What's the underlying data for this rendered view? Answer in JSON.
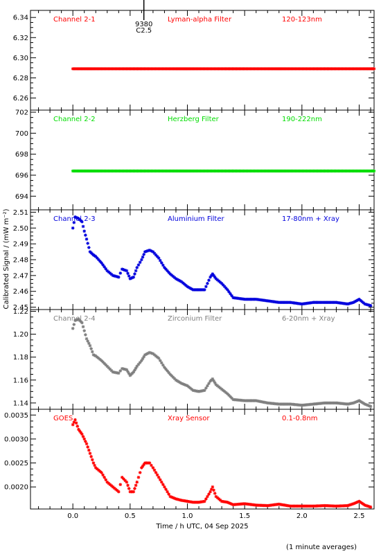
{
  "chart_data": {
    "type": "scatter",
    "xlabel": "Time / h UTC, 04 Sep 2025",
    "ylabel": "Calibrated Signal / (mW m⁻²)",
    "note": "(1 minute averages)",
    "xlim": [
      -0.37,
      2.63
    ],
    "xticks": [
      0.0,
      0.5,
      1.0,
      1.5,
      2.0,
      2.5
    ],
    "xtick_labels": [
      "0.0",
      "0.5",
      "1.0",
      "1.5",
      "2.0",
      "2.5"
    ],
    "marker": "star",
    "panels": [
      {
        "channel": "Channel 2-1",
        "filter": "Lyman-alpha Filter",
        "band": "120-123nm",
        "color": "#ff0000",
        "ylim": [
          6.248,
          6.347
        ],
        "yticks": [
          6.26,
          6.28,
          6.3,
          6.32,
          6.34
        ],
        "ytick_labels": [
          "6.26",
          "6.28",
          "6.30",
          "6.32",
          "6.34"
        ],
        "annotation": {
          "x": 0.62,
          "lines": [
            "9380",
            "C2.5"
          ]
        },
        "x": [
          0.0,
          2.63
        ],
        "y": [
          6.289,
          6.289
        ]
      },
      {
        "channel": "Channel 2-2",
        "filter": "Herzberg Filter",
        "band": "190-222nm",
        "color": "#00dd00",
        "ylim": [
          692.7,
          702.2
        ],
        "yticks": [
          694,
          696,
          698,
          700,
          702
        ],
        "ytick_labels": [
          "694",
          "696",
          "698",
          "700",
          "702"
        ],
        "x": [
          0.0,
          2.63
        ],
        "y": [
          696.4,
          696.4
        ]
      },
      {
        "channel": "Channel 2-3",
        "filter": "Aluminium Filter",
        "band": "17-80nm + Xray",
        "color": "#0000dd",
        "ylim": [
          2.4485,
          2.5115
        ],
        "yticks": [
          2.45,
          2.46,
          2.47,
          2.48,
          2.49,
          2.5,
          2.51
        ],
        "ytick_labels": [
          "2.45",
          "2.46",
          "2.47",
          "2.48",
          "2.49",
          "2.50",
          "2.51"
        ],
        "x": [
          0.0,
          0.02,
          0.05,
          0.08,
          0.1,
          0.12,
          0.15,
          0.18,
          0.2,
          0.25,
          0.3,
          0.35,
          0.4,
          0.43,
          0.47,
          0.5,
          0.53,
          0.56,
          0.6,
          0.63,
          0.67,
          0.7,
          0.75,
          0.8,
          0.85,
          0.9,
          0.95,
          1.0,
          1.05,
          1.1,
          1.15,
          1.2,
          1.22,
          1.25,
          1.3,
          1.35,
          1.4,
          1.5,
          1.6,
          1.7,
          1.8,
          1.9,
          2.0,
          2.1,
          2.2,
          2.3,
          2.4,
          2.45,
          2.5,
          2.55,
          2.6
        ],
        "y": [
          2.5,
          2.507,
          2.506,
          2.504,
          2.498,
          2.493,
          2.485,
          2.483,
          2.482,
          2.478,
          2.473,
          2.47,
          2.469,
          2.474,
          2.473,
          2.468,
          2.469,
          2.475,
          2.48,
          2.485,
          2.486,
          2.485,
          2.481,
          2.475,
          2.471,
          2.468,
          2.466,
          2.463,
          2.461,
          2.461,
          2.461,
          2.469,
          2.471,
          2.468,
          2.465,
          2.461,
          2.456,
          2.455,
          2.455,
          2.454,
          2.453,
          2.453,
          2.452,
          2.453,
          2.453,
          2.453,
          2.452,
          2.453,
          2.455,
          2.452,
          2.451
        ]
      },
      {
        "channel": "Channel 2-4",
        "filter": "Zirconium Filter",
        "band": "6-20nm + Xray",
        "color": "#7f7f7f",
        "ylim": [
          1.1345,
          1.2215
        ],
        "yticks": [
          1.14,
          1.16,
          1.18,
          1.2,
          1.22
        ],
        "ytick_labels": [
          "1.14",
          "1.16",
          "1.18",
          "1.20",
          "1.22"
        ],
        "x": [
          0.0,
          0.02,
          0.05,
          0.08,
          0.1,
          0.12,
          0.15,
          0.18,
          0.2,
          0.25,
          0.3,
          0.35,
          0.4,
          0.43,
          0.47,
          0.5,
          0.53,
          0.56,
          0.6,
          0.63,
          0.67,
          0.7,
          0.75,
          0.8,
          0.85,
          0.9,
          0.95,
          1.0,
          1.05,
          1.1,
          1.15,
          1.2,
          1.22,
          1.25,
          1.3,
          1.35,
          1.4,
          1.5,
          1.6,
          1.7,
          1.8,
          1.9,
          2.0,
          2.1,
          2.2,
          2.3,
          2.4,
          2.45,
          2.5,
          2.55,
          2.6
        ],
        "y": [
          1.205,
          1.212,
          1.213,
          1.21,
          1.203,
          1.196,
          1.19,
          1.182,
          1.181,
          1.177,
          1.172,
          1.167,
          1.166,
          1.17,
          1.169,
          1.164,
          1.167,
          1.172,
          1.177,
          1.182,
          1.184,
          1.183,
          1.179,
          1.171,
          1.165,
          1.16,
          1.157,
          1.155,
          1.151,
          1.15,
          1.151,
          1.159,
          1.161,
          1.156,
          1.152,
          1.148,
          1.143,
          1.142,
          1.142,
          1.14,
          1.139,
          1.139,
          1.138,
          1.139,
          1.14,
          1.14,
          1.139,
          1.14,
          1.142,
          1.139,
          1.137
        ]
      },
      {
        "channel": "GOES",
        "filter": "Xray Sensor",
        "band": "0.1-0.8nm",
        "color": "#ff0000",
        "ylim": [
          0.00154,
          0.00362
        ],
        "yticks": [
          0.002,
          0.0025,
          0.003,
          0.0035
        ],
        "ytick_labels": [
          "0.0020",
          "0.0025",
          "0.0030",
          "0.0035"
        ],
        "x": [
          0.0,
          0.02,
          0.05,
          0.08,
          0.1,
          0.12,
          0.15,
          0.18,
          0.2,
          0.25,
          0.3,
          0.35,
          0.4,
          0.43,
          0.47,
          0.5,
          0.53,
          0.56,
          0.6,
          0.63,
          0.67,
          0.7,
          0.75,
          0.8,
          0.85,
          0.9,
          0.95,
          1.0,
          1.05,
          1.1,
          1.15,
          1.2,
          1.22,
          1.25,
          1.3,
          1.35,
          1.4,
          1.5,
          1.6,
          1.7,
          1.8,
          1.9,
          2.0,
          2.1,
          2.2,
          2.3,
          2.4,
          2.45,
          2.5,
          2.55,
          2.6
        ],
        "y": [
          0.0033,
          0.0034,
          0.0032,
          0.0031,
          0.003,
          0.0029,
          0.0027,
          0.0025,
          0.0024,
          0.0023,
          0.0021,
          0.002,
          0.0019,
          0.0022,
          0.0021,
          0.0019,
          0.0019,
          0.0021,
          0.0024,
          0.0025,
          0.0025,
          0.0024,
          0.0022,
          0.002,
          0.0018,
          0.00175,
          0.00172,
          0.0017,
          0.00168,
          0.00168,
          0.0017,
          0.0019,
          0.002,
          0.0018,
          0.0017,
          0.00168,
          0.00163,
          0.00165,
          0.00162,
          0.00161,
          0.00164,
          0.0016,
          0.0016,
          0.0016,
          0.00161,
          0.0016,
          0.00161,
          0.00165,
          0.0017,
          0.00162,
          0.00158
        ]
      }
    ]
  }
}
